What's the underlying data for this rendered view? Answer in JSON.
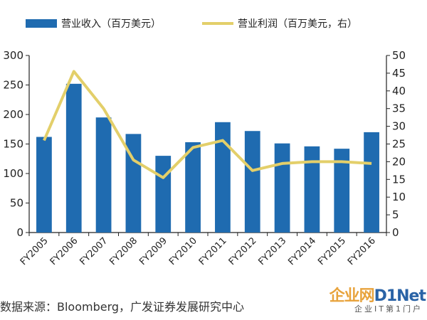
{
  "chart_data": {
    "type": "bar",
    "categories": [
      "FY2005",
      "FY2006",
      "FY2007",
      "FY2008",
      "FY2009",
      "FY2010",
      "FY2011",
      "FY2012",
      "FY2013",
      "FY2014",
      "FY2015",
      "FY2016"
    ],
    "series": [
      {
        "name": "营业收入（百万美元）",
        "type": "bar",
        "axis": "left",
        "color": "#1f6bb0",
        "values": [
          162,
          252,
          195,
          167,
          130,
          153,
          187,
          172,
          151,
          146,
          142,
          170
        ]
      },
      {
        "name": "营业利润（百万美元，右）",
        "type": "line",
        "axis": "right",
        "color": "#e3cf6a",
        "values": [
          26,
          45.5,
          35,
          20.5,
          15.5,
          24,
          26,
          17.5,
          19.5,
          20,
          20,
          19.5
        ]
      }
    ],
    "y_left": {
      "min": 0,
      "max": 300,
      "ticks": [
        0,
        50,
        100,
        150,
        200,
        250,
        300
      ]
    },
    "y_right": {
      "min": 0,
      "max": 50,
      "ticks": [
        0,
        5,
        10,
        15,
        20,
        25,
        30,
        35,
        40,
        45,
        50
      ]
    },
    "legend_position": "top",
    "grid": false
  },
  "source": "数据来源：Bloomberg，广发证券发展研究中心",
  "watermark": {
    "main_part1": "企业网",
    "main_part2": "D1Net",
    "sub": "企业IT第1门户"
  }
}
